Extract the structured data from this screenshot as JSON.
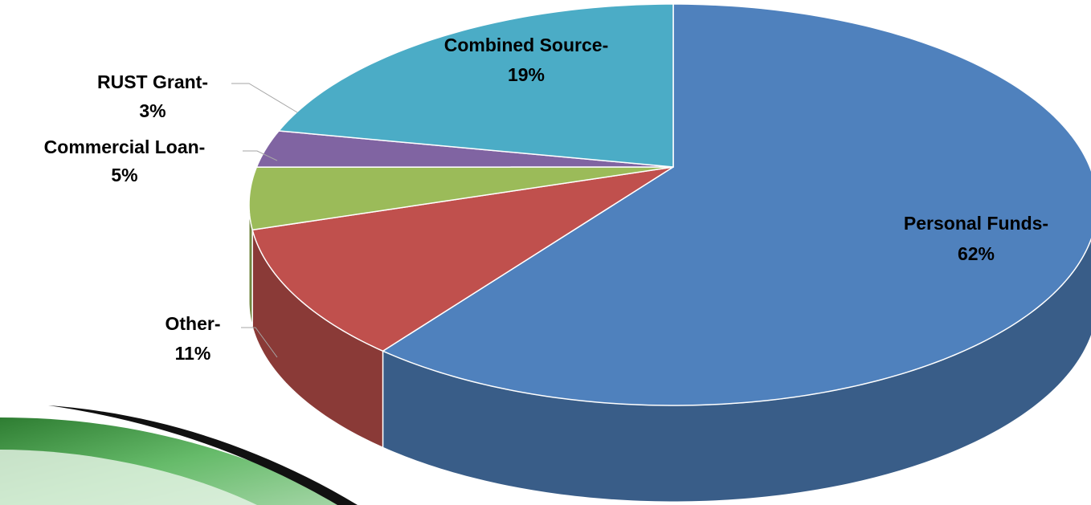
{
  "chart_data": {
    "type": "pie3d",
    "categories": [
      "Personal Funds-",
      "Other-",
      "Commercial Loan-",
      "RUST Grant-",
      "Combined Source-"
    ],
    "values": [
      62,
      11,
      5,
      3,
      19
    ],
    "value_labels": [
      "62%",
      "11%",
      "5%",
      "3%",
      "19%"
    ],
    "colors": [
      "#4f81bd",
      "#c0504d",
      "#9bbb59",
      "#8064a2",
      "#4bacc6"
    ]
  }
}
